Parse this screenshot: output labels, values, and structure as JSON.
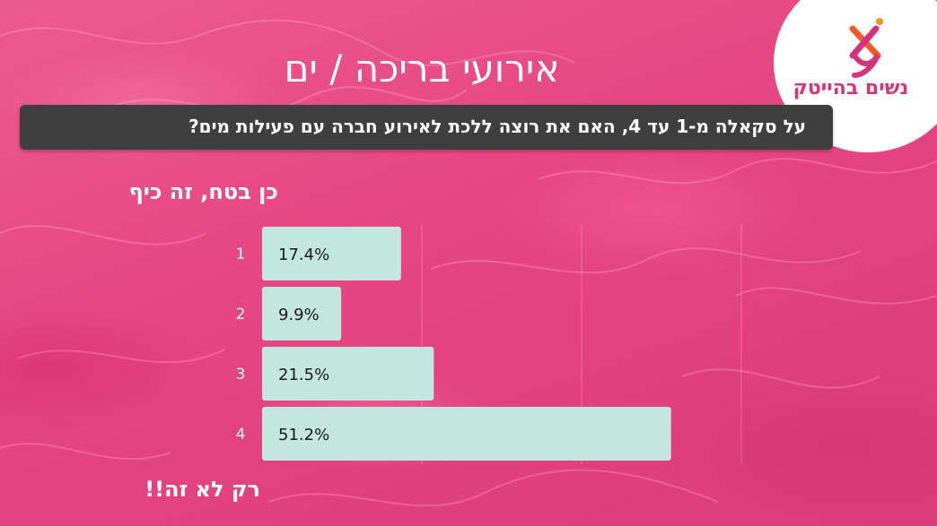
{
  "header": {
    "title": "אירועי בריכה / ים",
    "question": "על סקאלה מ-1 עד 4, האם את רוצה ללכת לאירוע חברה עם פעילות מים?"
  },
  "logo": {
    "text": "נשים בהייטק",
    "icon": "x-figure-logo-icon",
    "colors": [
      "#d7337a",
      "#f15a29",
      "#f7941d"
    ]
  },
  "scale_labels": {
    "top": "כן בטח, זה כיף",
    "bottom": "רק לא זה!!"
  },
  "colors": {
    "background": "#e8487f",
    "question_bar": "#3f3f3f",
    "bar_fill": "#c3e6df",
    "text": "#ffffff"
  },
  "chart_data": {
    "type": "bar",
    "orientation": "horizontal",
    "categories": [
      "1",
      "2",
      "3",
      "4"
    ],
    "values": [
      17.4,
      9.9,
      21.5,
      51.2
    ],
    "value_labels": [
      "17.4%",
      "9.9%",
      "21.5%",
      "51.2%"
    ],
    "xlim": [
      0,
      100
    ],
    "grid": true
  }
}
